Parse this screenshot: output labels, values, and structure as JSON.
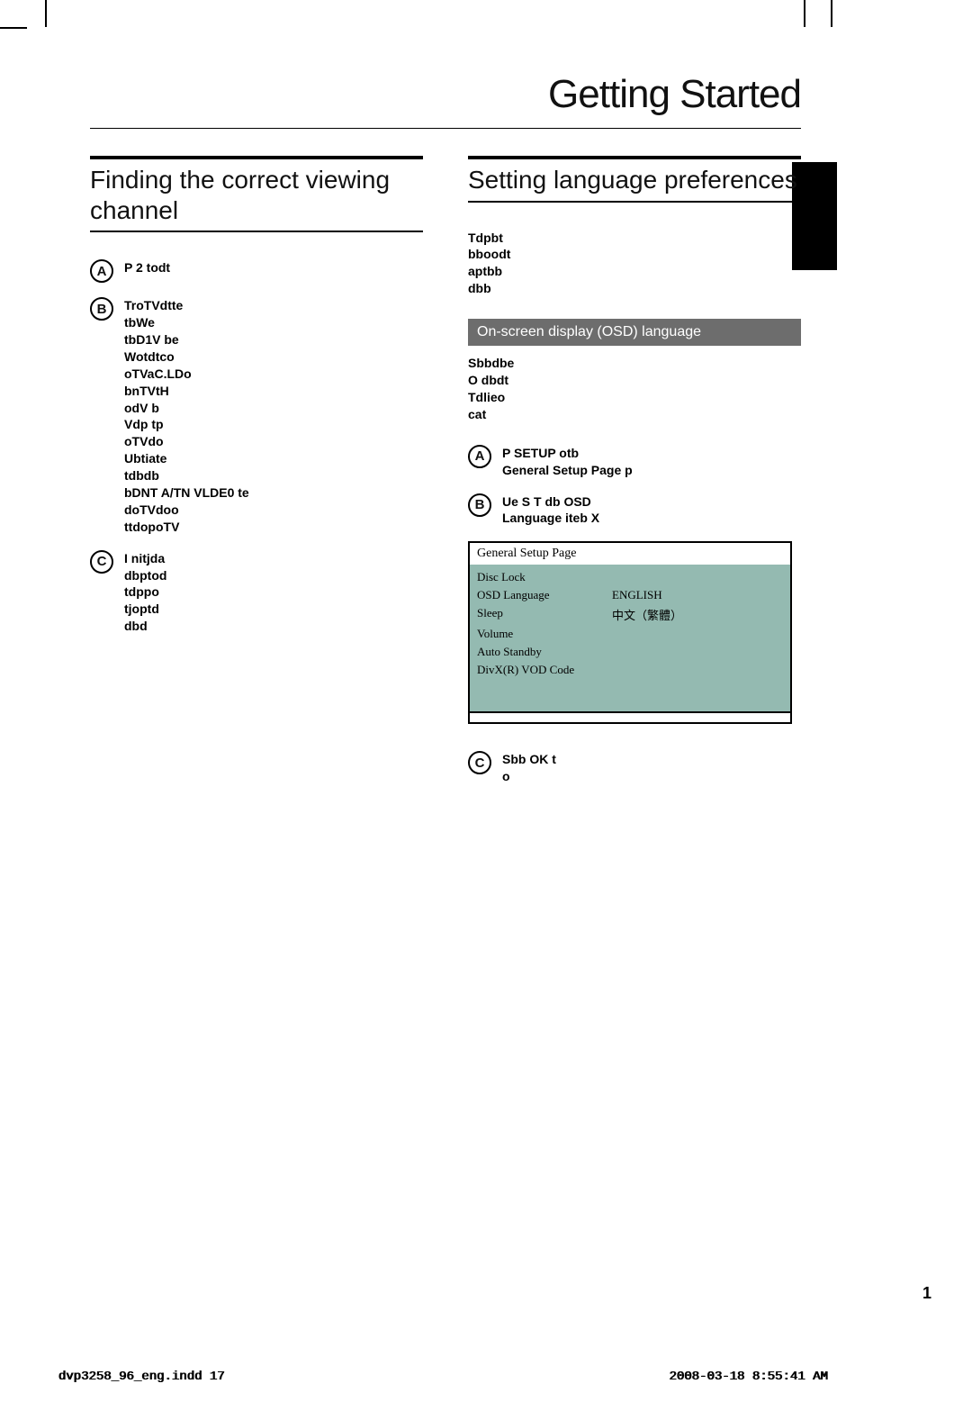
{
  "page": {
    "title": "Getting Started",
    "number": "1"
  },
  "left": {
    "heading": "Finding the correct viewing channel",
    "steps": [
      {
        "badge": "A",
        "text": "P    2     todt"
      },
      {
        "badge": "B",
        "text": "TroTVdtte\ntbWe\ntbD1V be\n    Wotdtco\noTVaC.LDo\nbnTVtH\nodV b\n    Vdp                    tp\noTVdo\n    Ubtiate\ntdbdb\nbDNT A/TN VLDE0 te\n    doTVdoo\nttdopoTV"
      },
      {
        "badge": "C",
        "text": "I nitjda\ndbptod\ntdppo\ntjoptd\ndbd"
      }
    ]
  },
  "right": {
    "heading": "Setting language preferences",
    "note": "Tdpbt\nbboodt\naptbb\ndbb",
    "subsection": "On-screen display (OSD) language",
    "sub_note": "Sbbdbe\nO dbdt\nTdlieo\ncat",
    "steps": [
      {
        "badge": "A",
        "text": "P    SETUP otb\n    General Setup Page    p"
      },
      {
        "badge": "B",
        "text": "Ue    S T db          OSD\nLanguage  iteb              X"
      },
      {
        "badge": "C",
        "text": "Sbb                   OK   t\no"
      }
    ],
    "menu": {
      "title": "General Setup Page",
      "rows": [
        {
          "label": "Disc Lock",
          "val": ""
        },
        {
          "label": "OSD Language",
          "val": "ENGLISH"
        },
        {
          "label": "Sleep",
          "val": "中文（繁體）"
        },
        {
          "label": "Volume",
          "val": ""
        },
        {
          "label": "Auto Standby",
          "val": ""
        },
        {
          "label": "DivX(R) VOD Code",
          "val": ""
        }
      ]
    }
  },
  "footer": {
    "left": "dvp3258_96_eng.indd   17",
    "right": "2008-03-18   8:55:41 AM"
  }
}
